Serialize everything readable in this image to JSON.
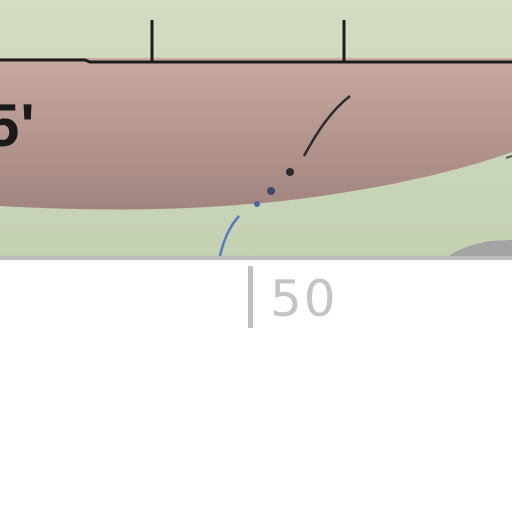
{
  "map": {
    "contour_label": "5'",
    "colors": {
      "field": "#c9d6b6",
      "field_light": "#dbe4cd",
      "band": "#b99a92",
      "band_dark": "#a88882",
      "outline": "#1c1c1c",
      "trail_blue": "#5a78c0",
      "trail_dark": "#333333",
      "frame": "#bdbdbd"
    }
  },
  "scale": {
    "label": "50"
  }
}
